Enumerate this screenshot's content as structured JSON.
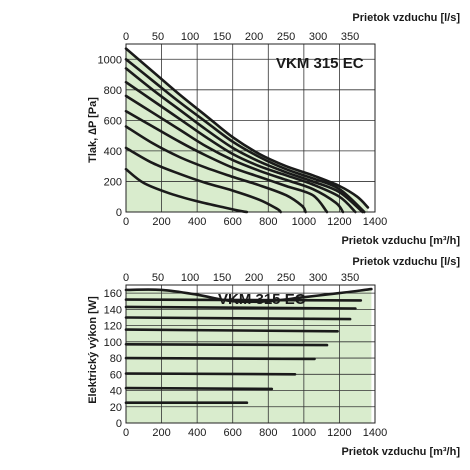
{
  "chart_data": [
    {
      "type": "line",
      "title": "VKM 315 EC",
      "xlabel": "Prietok vzduchu [m³/h]",
      "x2label": "Prietok vzduchu [l/s]",
      "ylabel": "Tlak, ∆P [Pa]",
      "xlim": [
        0,
        1400
      ],
      "ylim": [
        0,
        1100
      ],
      "x_ticks": [
        "0",
        "200",
        "400",
        "600",
        "800",
        "1000",
        "1200",
        "1400"
      ],
      "x2_ticks": [
        "0",
        "50",
        "100",
        "150",
        "200",
        "250",
        "300",
        "350"
      ],
      "y_ticks": [
        "0",
        "200",
        "400",
        "600",
        "800",
        "1000"
      ],
      "fill_color": "#d9eccd",
      "line_color": "#1a1a1a",
      "grid": true,
      "series": [
        {
          "x": [
            0,
            100,
            250,
            400,
            550,
            650,
            680
          ],
          "y": [
            280,
            190,
            120,
            70,
            30,
            5,
            0
          ]
        },
        {
          "x": [
            0,
            150,
            300,
            450,
            600,
            750,
            850,
            870
          ],
          "y": [
            420,
            320,
            250,
            190,
            140,
            80,
            20,
            0
          ]
        },
        {
          "x": [
            0,
            150,
            300,
            450,
            600,
            750,
            900,
            990,
            1010
          ],
          "y": [
            560,
            450,
            360,
            290,
            230,
            175,
            110,
            40,
            0
          ]
        },
        {
          "x": [
            0,
            150,
            300,
            450,
            600,
            750,
            900,
            1050,
            1130
          ],
          "y": [
            660,
            560,
            460,
            370,
            290,
            230,
            170,
            110,
            0
          ]
        },
        {
          "x": [
            0,
            150,
            300,
            450,
            600,
            750,
            900,
            1050,
            1180,
            1220
          ],
          "y": [
            760,
            650,
            540,
            430,
            340,
            270,
            210,
            150,
            60,
            0
          ]
        },
        {
          "x": [
            0,
            150,
            300,
            450,
            600,
            750,
            900,
            1050,
            1200,
            1290
          ],
          "y": [
            850,
            730,
            610,
            490,
            380,
            300,
            240,
            180,
            100,
            0
          ]
        },
        {
          "x": [
            0,
            150,
            300,
            450,
            600,
            750,
            900,
            1050,
            1200,
            1330
          ],
          "y": [
            940,
            800,
            670,
            540,
            420,
            330,
            260,
            200,
            130,
            0
          ]
        },
        {
          "x": [
            0,
            150,
            300,
            450,
            600,
            750,
            900,
            1050,
            1200,
            1340
          ],
          "y": [
            1000,
            860,
            720,
            590,
            460,
            360,
            280,
            220,
            150,
            0
          ]
        },
        {
          "x": [
            0,
            150,
            300,
            450,
            600,
            750,
            900,
            1050,
            1200,
            1300,
            1360
          ],
          "y": [
            1070,
            920,
            770,
            630,
            490,
            380,
            300,
            240,
            170,
            100,
            30
          ]
        }
      ]
    },
    {
      "type": "line",
      "title": "VKM 315 EC",
      "xlabel": "Prietok vzduchu [m³/h]",
      "x2label": "Prietok vzduchu [l/s]",
      "ylabel": "Elektrický výkon [W]",
      "xlim": [
        0,
        1400
      ],
      "ylim": [
        0,
        170
      ],
      "x_ticks": [
        "0",
        "200",
        "400",
        "600",
        "800",
        "1000",
        "1200",
        "1400"
      ],
      "x2_ticks": [
        "0",
        "50",
        "100",
        "150",
        "200",
        "250",
        "300",
        "350"
      ],
      "y_ticks": [
        "0",
        "20",
        "40",
        "60",
        "80",
        "100",
        "120",
        "140",
        "160"
      ],
      "fill_color": "#d9eccd",
      "line_color": "#1a1a1a",
      "grid": true,
      "envelope": {
        "x": [
          0,
          0,
          200,
          400,
          600,
          800,
          1000,
          1200,
          1310,
          1350,
          1380,
          1380,
          0
        ],
        "y": [
          0,
          164,
          164,
          158,
          150,
          150,
          155,
          160,
          164,
          162,
          165,
          0,
          0
        ]
      },
      "series": [
        {
          "x": [
            0,
            680
          ],
          "y": [
            25,
            25
          ]
        },
        {
          "x": [
            0,
            820
          ],
          "y": [
            43,
            42
          ]
        },
        {
          "x": [
            0,
            950
          ],
          "y": [
            61,
            60
          ]
        },
        {
          "x": [
            0,
            1060
          ],
          "y": [
            80,
            79
          ]
        },
        {
          "x": [
            0,
            1130
          ],
          "y": [
            97,
            96
          ]
        },
        {
          "x": [
            0,
            1190
          ],
          "y": [
            115,
            113
          ]
        },
        {
          "x": [
            0,
            1260
          ],
          "y": [
            130,
            128
          ]
        },
        {
          "x": [
            0,
            1290
          ],
          "y": [
            143,
            141
          ]
        },
        {
          "x": [
            0,
            1320
          ],
          "y": [
            152,
            151
          ]
        },
        {
          "x": [
            0,
            200,
            400,
            600,
            800,
            1000,
            1200,
            1380
          ],
          "y": [
            164,
            164,
            158,
            150,
            150,
            155,
            160,
            165
          ]
        }
      ]
    }
  ]
}
